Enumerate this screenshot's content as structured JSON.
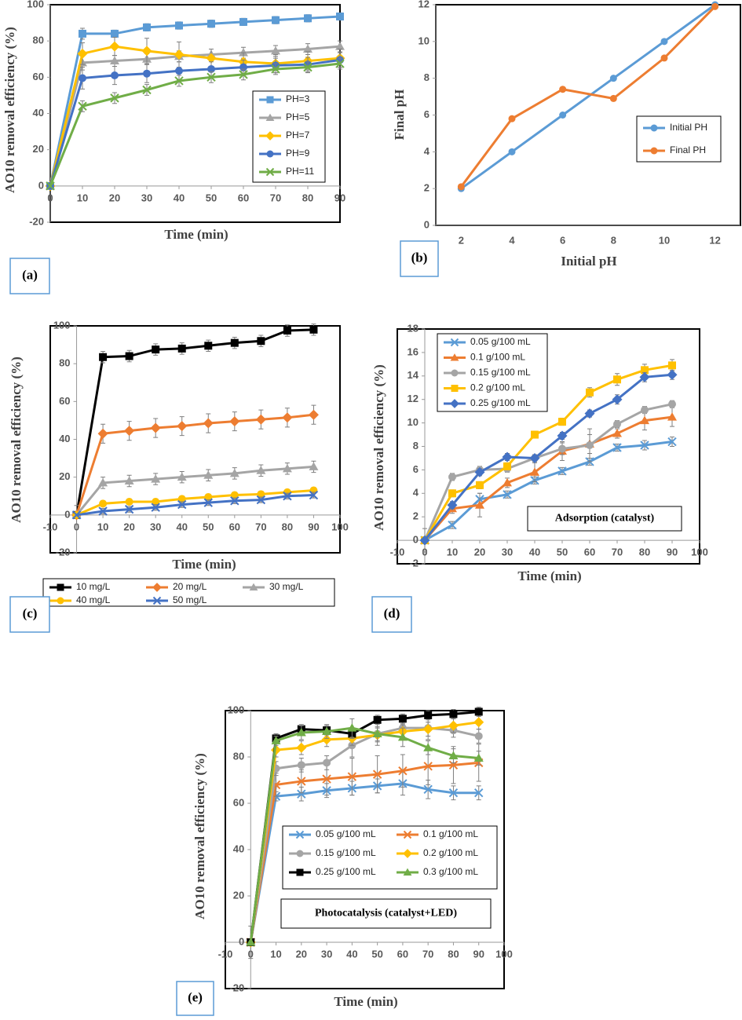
{
  "chart_data": [
    {
      "type": "line",
      "panel_label": "(a)",
      "xlabel": "Time (min)",
      "ylabel": "AO10 removal efficiency (%)",
      "x": [
        0,
        10,
        20,
        30,
        40,
        50,
        60,
        70,
        80,
        90
      ],
      "xlim": [
        0,
        90
      ],
      "xticks": [
        0,
        10,
        20,
        30,
        40,
        50,
        60,
        70,
        80,
        90
      ],
      "ylim": [
        -20,
        100
      ],
      "yticks": [
        -20,
        0,
        20,
        40,
        60,
        80,
        100
      ],
      "series": [
        {
          "name": "PH=3",
          "color": "#5b9bd5",
          "marker": "square",
          "values": [
            0,
            84,
            84,
            87.5,
            88.5,
            89.5,
            90.5,
            91.5,
            92.5,
            93.5
          ],
          "errors": [
            0,
            3,
            2,
            2,
            2,
            2,
            2,
            2,
            2,
            2
          ]
        },
        {
          "name": "PH=5",
          "color": "#a5a5a5",
          "marker": "triangle",
          "values": [
            0,
            68,
            69,
            70,
            71.5,
            72.5,
            73.5,
            74.5,
            75.5,
            77
          ],
          "errors": [
            0,
            4,
            3,
            3,
            3,
            3,
            3,
            3,
            3,
            3
          ]
        },
        {
          "name": "PH=7",
          "color": "#ffc000",
          "marker": "diamond",
          "values": [
            0,
            73,
            77,
            74.5,
            72.5,
            70.5,
            68.5,
            67.5,
            69,
            70.5
          ],
          "errors": [
            0,
            6,
            5,
            7,
            7,
            5,
            5,
            5,
            5,
            5
          ]
        },
        {
          "name": "PH=9",
          "color": "#4472c4",
          "marker": "circle",
          "values": [
            0,
            59.5,
            61,
            62,
            63.5,
            64.5,
            65.5,
            66.5,
            67,
            69.5
          ],
          "errors": [
            0,
            6,
            5,
            5,
            5,
            4,
            4,
            4,
            4,
            4
          ]
        },
        {
          "name": "PH=11",
          "color": "#70ad47",
          "marker": "x",
          "values": [
            0,
            44,
            48.5,
            53,
            58,
            60,
            61.5,
            64.5,
            65.5,
            67.5
          ],
          "errors": [
            0,
            3,
            3,
            3,
            3,
            3,
            3,
            3,
            3,
            3
          ]
        }
      ]
    },
    {
      "type": "category-line",
      "panel_label": "(b)",
      "xlabel": "Initial pH",
      "ylabel": "Final pH",
      "categories": [
        2,
        4,
        6,
        8,
        10,
        12
      ],
      "ylim": [
        0,
        12
      ],
      "yticks": [
        0,
        2,
        4,
        6,
        8,
        10,
        12
      ],
      "series": [
        {
          "name": "Initial PH",
          "color": "#5b9bd5",
          "marker": "circle",
          "values": [
            2,
            4,
            6,
            8,
            10,
            12
          ]
        },
        {
          "name": "Final PH",
          "color": "#ed7d31",
          "marker": "circle",
          "values": [
            2.1,
            5.8,
            7.4,
            6.9,
            9.1,
            11.9
          ]
        }
      ]
    },
    {
      "type": "line",
      "panel_label": "(c)",
      "xlabel": "Time (min)",
      "ylabel": "AO10 removal efficiency (%)",
      "x": [
        0,
        10,
        20,
        30,
        40,
        50,
        60,
        70,
        80,
        90
      ],
      "xlim": [
        -10,
        100
      ],
      "xticks": [
        -10,
        0,
        10,
        20,
        30,
        40,
        50,
        60,
        70,
        80,
        90,
        100
      ],
      "ylim": [
        -20,
        100
      ],
      "yticks": [
        -20,
        0,
        20,
        40,
        60,
        80,
        100
      ],
      "series": [
        {
          "name": "10 mg/L",
          "color": "#000000",
          "marker": "square",
          "values": [
            0,
            83.5,
            84,
            87.5,
            88,
            89.5,
            91,
            92,
            97.5,
            98
          ],
          "errors": [
            5,
            3,
            3,
            3,
            3,
            3,
            3,
            3,
            3,
            3
          ]
        },
        {
          "name": "20 mg/L",
          "color": "#ed7d31",
          "marker": "diamond",
          "values": [
            0,
            43,
            44.5,
            46,
            47,
            48.5,
            49.5,
            50.5,
            51.5,
            53
          ],
          "errors": [
            0,
            5,
            5,
            5,
            5,
            5,
            5,
            5,
            5,
            5
          ]
        },
        {
          "name": "30 mg/L",
          "color": "#a5a5a5",
          "marker": "triangle",
          "values": [
            0,
            17,
            18,
            19,
            20,
            21,
            22,
            23.5,
            24.5,
            25.5
          ],
          "errors": [
            0,
            3,
            3,
            3,
            3,
            3,
            3,
            3,
            3,
            3
          ]
        },
        {
          "name": "40 mg/L",
          "color": "#ffc000",
          "marker": "circle",
          "values": [
            0,
            6,
            7,
            7,
            8.5,
            9.5,
            10.5,
            11,
            12,
            13
          ],
          "errors": [
            0,
            1.5,
            1.5,
            1.5,
            1.5,
            1.5,
            1.5,
            1.5,
            1.5,
            1.5
          ]
        },
        {
          "name": "50 mg/L",
          "color": "#4472c4",
          "marker": "x",
          "values": [
            0,
            2,
            3,
            4,
            5.5,
            6.5,
            7.5,
            8,
            10,
            10.5
          ],
          "errors": [
            0,
            1.5,
            1.5,
            1.5,
            1.5,
            1.5,
            1.5,
            1.5,
            1.5,
            1.5
          ]
        }
      ]
    },
    {
      "type": "line",
      "panel_label": "(d)",
      "xlabel": "Time (min)",
      "ylabel": "AO10 removal efficiency (%)",
      "annotation": "Adsorption (catalyst)",
      "x": [
        0,
        10,
        20,
        30,
        40,
        50,
        60,
        70,
        80,
        90
      ],
      "xlim": [
        -10,
        100
      ],
      "xticks": [
        -10,
        0,
        10,
        20,
        30,
        40,
        50,
        60,
        70,
        80,
        90,
        100
      ],
      "ylim": [
        -2,
        18
      ],
      "yticks": [
        -2,
        0,
        2,
        4,
        6,
        8,
        10,
        12,
        14,
        16,
        18
      ],
      "series": [
        {
          "name": "0.05 g/100 mL",
          "color": "#5b9bd5",
          "marker": "x",
          "values": [
            0,
            1.3,
            3.5,
            3.9,
            5.1,
            5.9,
            6.7,
            7.9,
            8.1,
            8.4
          ],
          "errors": [
            0,
            0.3,
            0.5,
            0.3,
            0.3,
            0.3,
            0.3,
            0.3,
            0.4,
            0.4
          ]
        },
        {
          "name": "0.1 g/100 mL",
          "color": "#ed7d31",
          "marker": "triangle",
          "values": [
            0,
            2.7,
            3,
            4.9,
            5.8,
            7.6,
            8.2,
            9.1,
            10.2,
            10.5
          ],
          "errors": [
            0,
            0.4,
            1,
            0.4,
            0.8,
            0.8,
            0.8,
            0.4,
            0.8,
            0.8
          ]
        },
        {
          "name": "0.15 g/100 mL",
          "color": "#a5a5a5",
          "marker": "circle",
          "values": [
            0,
            5.4,
            6,
            6.1,
            7,
            7.8,
            8.1,
            9.9,
            11.1,
            11.6
          ],
          "errors": [
            1,
            0.3,
            0.3,
            0.3,
            0.3,
            0.5,
            1.4,
            0.3,
            0.3,
            0.3
          ]
        },
        {
          "name": "0.2 g/100 mL",
          "color": "#ffc000",
          "marker": "square",
          "values": [
            0,
            4,
            4.7,
            6.3,
            9,
            10.1,
            12.6,
            13.7,
            14.5,
            14.9
          ],
          "errors": [
            0,
            0.3,
            0.3,
            0.3,
            0.3,
            0.3,
            0.4,
            0.5,
            0.5,
            0.5
          ]
        },
        {
          "name": "0.25 g/100 mL",
          "color": "#4472c4",
          "marker": "diamond",
          "values": [
            0,
            3,
            5.8,
            7.1,
            7,
            8.9,
            10.8,
            12,
            13.9,
            14.1
          ],
          "errors": [
            0,
            0.3,
            0.3,
            0.3,
            0.3,
            0.3,
            0.3,
            0.4,
            0.4,
            0.4
          ]
        }
      ]
    },
    {
      "type": "line",
      "panel_label": "(e)",
      "xlabel": "Time (min)",
      "ylabel": "AO10 removal efficiency (%)",
      "annotation": "Photocatalysis (catalyst+LED)",
      "x": [
        0,
        10,
        20,
        30,
        40,
        50,
        60,
        70,
        80,
        90
      ],
      "xlim": [
        -10,
        100
      ],
      "xticks": [
        -10,
        0,
        10,
        20,
        30,
        40,
        50,
        60,
        70,
        80,
        90,
        100
      ],
      "ylim": [
        -20,
        100
      ],
      "yticks": [
        -20,
        0,
        20,
        40,
        60,
        80,
        100
      ],
      "series": [
        {
          "name": "0.05 g/100 mL",
          "color": "#5b9bd5",
          "marker": "x",
          "values": [
            0,
            63,
            64,
            65.5,
            66.5,
            67.5,
            68.5,
            66,
            64.5,
            64.5
          ],
          "errors": [
            7,
            2,
            3,
            3,
            3,
            3,
            5,
            4,
            3,
            3
          ]
        },
        {
          "name": "0.1 g/100 mL",
          "color": "#ed7d31",
          "marker": "x",
          "values": [
            0,
            68,
            69.5,
            70.5,
            71.5,
            72.5,
            74,
            76,
            76.5,
            77.5
          ],
          "errors": [
            0,
            5,
            5,
            7,
            8,
            8,
            7,
            8,
            8,
            8
          ]
        },
        {
          "name": "0.15 g/100 mL",
          "color": "#a5a5a5",
          "marker": "circle",
          "values": [
            0,
            75,
            76.5,
            77.5,
            85,
            90,
            92.5,
            92.5,
            91.5,
            89
          ],
          "errors": [
            0,
            3,
            3,
            3,
            5,
            5,
            5,
            5,
            3,
            3
          ]
        },
        {
          "name": "0.2 g/100 mL",
          "color": "#ffc000",
          "marker": "diamond",
          "values": [
            0,
            83,
            84,
            87.5,
            88,
            89.5,
            91,
            92,
            93.5,
            95
          ],
          "errors": [
            0,
            3,
            3,
            3,
            3,
            3,
            3,
            3,
            3,
            3
          ]
        },
        {
          "name": "0.25 g/100 mL",
          "color": "#000000",
          "marker": "square",
          "values": [
            0,
            88,
            92,
            91.5,
            90,
            96,
            96.5,
            98,
            98.5,
            99.5
          ],
          "errors": [
            0,
            2,
            2,
            2,
            2,
            2,
            2,
            2,
            2,
            2
          ]
        },
        {
          "name": "0.3 g/100 mL",
          "color": "#70ad47",
          "marker": "triangle",
          "values": [
            0,
            87,
            90.5,
            91,
            92.5,
            90,
            88.5,
            84,
            80.5,
            79.5
          ],
          "errors": [
            0,
            2,
            3,
            3,
            4,
            3,
            4,
            3,
            3,
            3
          ]
        }
      ]
    }
  ]
}
